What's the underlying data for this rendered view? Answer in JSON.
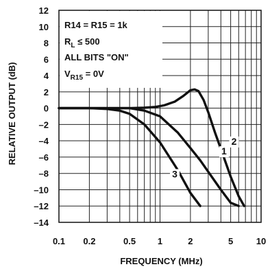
{
  "chart_data": {
    "type": "line",
    "xlabel": "FREQUENCY (MHz)",
    "ylabel": "RELATIVE OUTPUT (dB)",
    "xscale": "log",
    "xlim": [
      0.1,
      10
    ],
    "ylim": [
      -14,
      12
    ],
    "grid": true,
    "x_ticks": [
      0.1,
      0.2,
      0.5,
      1,
      2,
      5,
      10
    ],
    "x_tick_labels": [
      "0.1",
      "0.2",
      "0.5",
      "1",
      "2",
      "5",
      "10"
    ],
    "y_ticks": [
      12,
      10,
      8,
      6,
      4,
      2,
      0,
      -2,
      -4,
      -6,
      -8,
      -10,
      -12,
      -14
    ],
    "y_tick_labels": [
      "12",
      "10",
      "8",
      "6",
      "4",
      "2",
      "0",
      "–2",
      "–4",
      "–6",
      "–8",
      "–10",
      "–12",
      "–14"
    ],
    "legend_lines": [
      "R14 = R15 = 1k",
      "RL ≤ 500",
      "ALL BITS \"ON\"",
      "VR15 = 0V"
    ],
    "series": [
      {
        "label": "1",
        "x": [
          0.1,
          0.3,
          0.5,
          0.7,
          1.0,
          1.5,
          2.0,
          2.5,
          3.0,
          4.0,
          5.0,
          6.0
        ],
        "y": [
          0,
          0,
          0,
          -0.3,
          -1.0,
          -3.0,
          -4.9,
          -6.4,
          -7.8,
          -10.0,
          -11.6,
          -12.0
        ]
      },
      {
        "label": "2",
        "x": [
          0.1,
          0.5,
          0.7,
          0.9,
          1.1,
          1.4,
          1.7,
          2.0,
          2.2,
          2.4,
          2.7,
          3.0,
          3.5,
          4.0,
          5.0,
          6.0,
          6.8
        ],
        "y": [
          0,
          0,
          0.05,
          0.15,
          0.35,
          0.8,
          1.5,
          2.2,
          2.3,
          2.1,
          1.0,
          -0.5,
          -3.0,
          -5.0,
          -8.4,
          -10.8,
          -12.0
        ]
      },
      {
        "label": "3",
        "x": [
          0.1,
          0.2,
          0.3,
          0.4,
          0.5,
          0.7,
          1.0,
          1.5,
          2.0,
          2.5
        ],
        "y": [
          0,
          0,
          -0.1,
          -0.3,
          -0.7,
          -2.0,
          -4.2,
          -7.6,
          -10.4,
          -12.0
        ]
      }
    ],
    "curve_labels": [
      {
        "text": "1",
        "x": 4.3,
        "y": -5.6
      },
      {
        "text": "2",
        "x": 5.4,
        "y": -4.4
      },
      {
        "text": "3",
        "x": 1.4,
        "y": -8.4
      }
    ]
  }
}
